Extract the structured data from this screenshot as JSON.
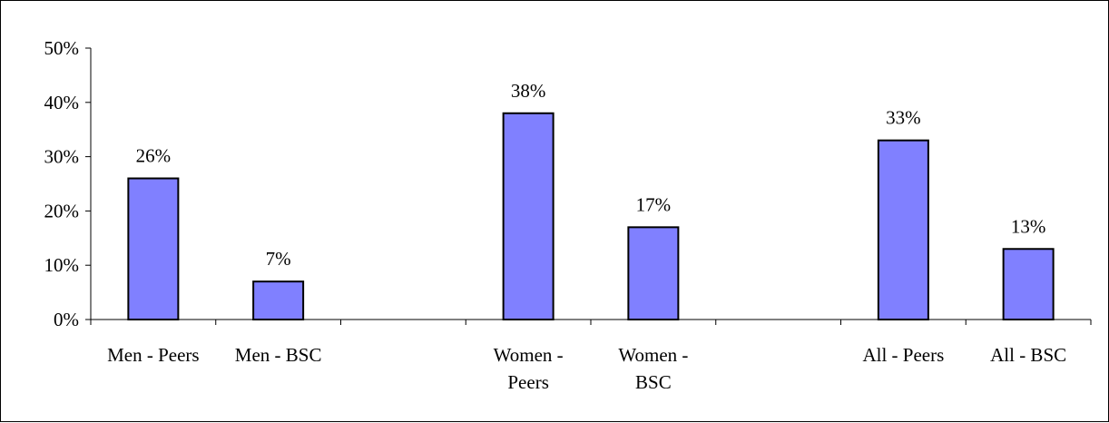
{
  "chart_data": {
    "type": "bar",
    "title": "",
    "xlabel": "",
    "ylabel": "",
    "ylim": [
      0,
      50
    ],
    "yticks": [
      "0%",
      "10%",
      "20%",
      "30%",
      "40%",
      "50%"
    ],
    "ytick_values": [
      0,
      10,
      20,
      30,
      40,
      50
    ],
    "grid": false,
    "legend": "none",
    "bar_color": "#8080FF",
    "bar_edge_color": "#000000",
    "categories": [
      [
        "Men - Peers"
      ],
      [
        "Men - BSC"
      ],
      [],
      [
        "Women -",
        "Peers"
      ],
      [
        "Women -",
        "BSC"
      ],
      [],
      [
        "All - Peers"
      ],
      [
        "All - BSC"
      ]
    ],
    "values": [
      26,
      7,
      null,
      38,
      17,
      null,
      33,
      13
    ],
    "data_labels": [
      "26%",
      "7%",
      "",
      "38%",
      "17%",
      "",
      "33%",
      "13%"
    ]
  }
}
